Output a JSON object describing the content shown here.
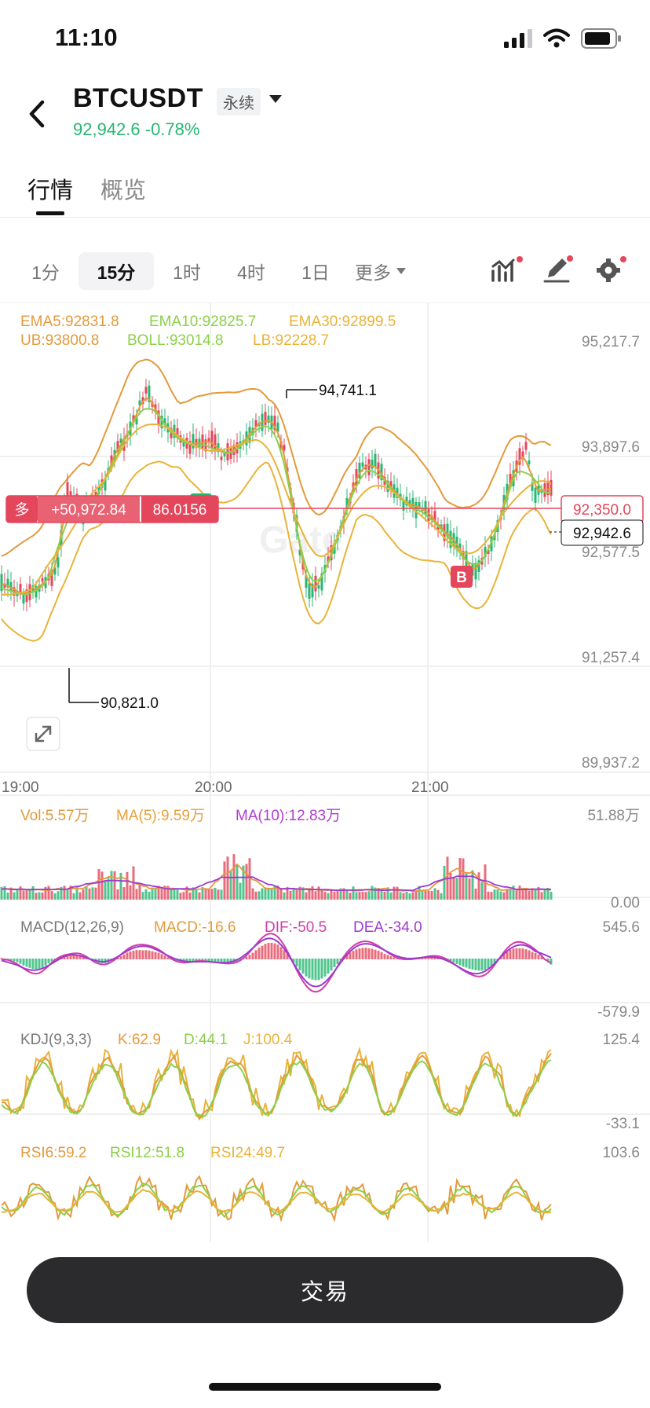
{
  "status": {
    "time": "11:10"
  },
  "header": {
    "symbol": "BTCUSDT",
    "contract_type": "永续",
    "price_change": "92,942.6 -0.78%"
  },
  "tabs": [
    {
      "label": "行情",
      "active": true
    },
    {
      "label": "概览",
      "active": false
    }
  ],
  "timeframes": [
    {
      "label": "1分",
      "active": false
    },
    {
      "label": "15分",
      "active": true
    },
    {
      "label": "1时",
      "active": false
    },
    {
      "label": "4时",
      "active": false
    },
    {
      "label": "1日",
      "active": false
    },
    {
      "label": "更多",
      "active": false
    }
  ],
  "toolbar_icons": [
    "indicator-icon",
    "draw-icon",
    "settings-icon"
  ],
  "colors": {
    "up": "#27b773",
    "down": "#e4475b",
    "ema5": "#e39a3c",
    "ema10": "#8bd04a",
    "ema30": "#e9b339",
    "macd_dif": "#d23ea6",
    "macd_dea": "#9c3bd1",
    "accent_dark": "#2b2b2e"
  },
  "chart": {
    "indicators": [
      {
        "text": "EMA5:92831.8",
        "color": "#e39a3c"
      },
      {
        "text": "EMA10:92825.7",
        "color": "#8bd04a"
      },
      {
        "text": "EMA30:92899.5",
        "color": "#e9b339"
      }
    ],
    "boll": [
      {
        "text": "UB:93800.8",
        "color": "#e39a3c"
      },
      {
        "text": "BOLL:93014.8",
        "color": "#8bd04a"
      },
      {
        "text": "LB:92228.7",
        "color": "#e9b339"
      }
    ],
    "price_axis": [
      "95,217.7",
      "93,897.6",
      "92,577.5",
      "91,257.4",
      "89,937.2"
    ],
    "time_axis": [
      "19:00",
      "20:00",
      "21:00"
    ],
    "high_label": "94,741.1",
    "low_label": "90,821.0",
    "current_price": "92,942.6",
    "position": {
      "side": "多",
      "pnl": "+50,972.84",
      "size": "86.0156",
      "entry_price": "92,350.0"
    },
    "markers": {
      "sell": "S",
      "buy": "B"
    },
    "watermark": "Gate"
  },
  "volume": {
    "labels": [
      {
        "text": "Vol:5.57万",
        "color": "#e39a3c"
      },
      {
        "text": "MA(5):9.59万",
        "color": "#e9a03c"
      },
      {
        "text": "MA(10):12.83万",
        "color": "#b03cd1"
      }
    ],
    "axis": [
      "51.88万",
      "0.00"
    ]
  },
  "macd": {
    "labels": [
      {
        "text": "MACD(12,26,9)",
        "color": "#777777"
      },
      {
        "text": "MACD:-16.6",
        "color": "#e39a3c"
      },
      {
        "text": "DIF:-50.5",
        "color": "#d23ea6"
      },
      {
        "text": "DEA:-34.0",
        "color": "#9c3bd1"
      }
    ],
    "axis": [
      "545.6",
      "-579.9"
    ]
  },
  "kdj": {
    "labels": [
      {
        "text": "KDJ(9,3,3)",
        "color": "#777777"
      },
      {
        "text": "K:62.9",
        "color": "#e39a3c"
      },
      {
        "text": "D:44.1",
        "color": "#8bd04a"
      },
      {
        "text": "J:100.4",
        "color": "#e9b339"
      }
    ],
    "axis": [
      "125.4",
      "-33.1"
    ]
  },
  "rsi": {
    "labels": [
      {
        "text": "RSI6:59.2",
        "color": "#e39a3c"
      },
      {
        "text": "RSI12:51.8",
        "color": "#8bd04a"
      },
      {
        "text": "RSI24:49.7",
        "color": "#e9b339"
      }
    ],
    "axis": [
      "103.6"
    ]
  },
  "trade_button": "交易"
}
